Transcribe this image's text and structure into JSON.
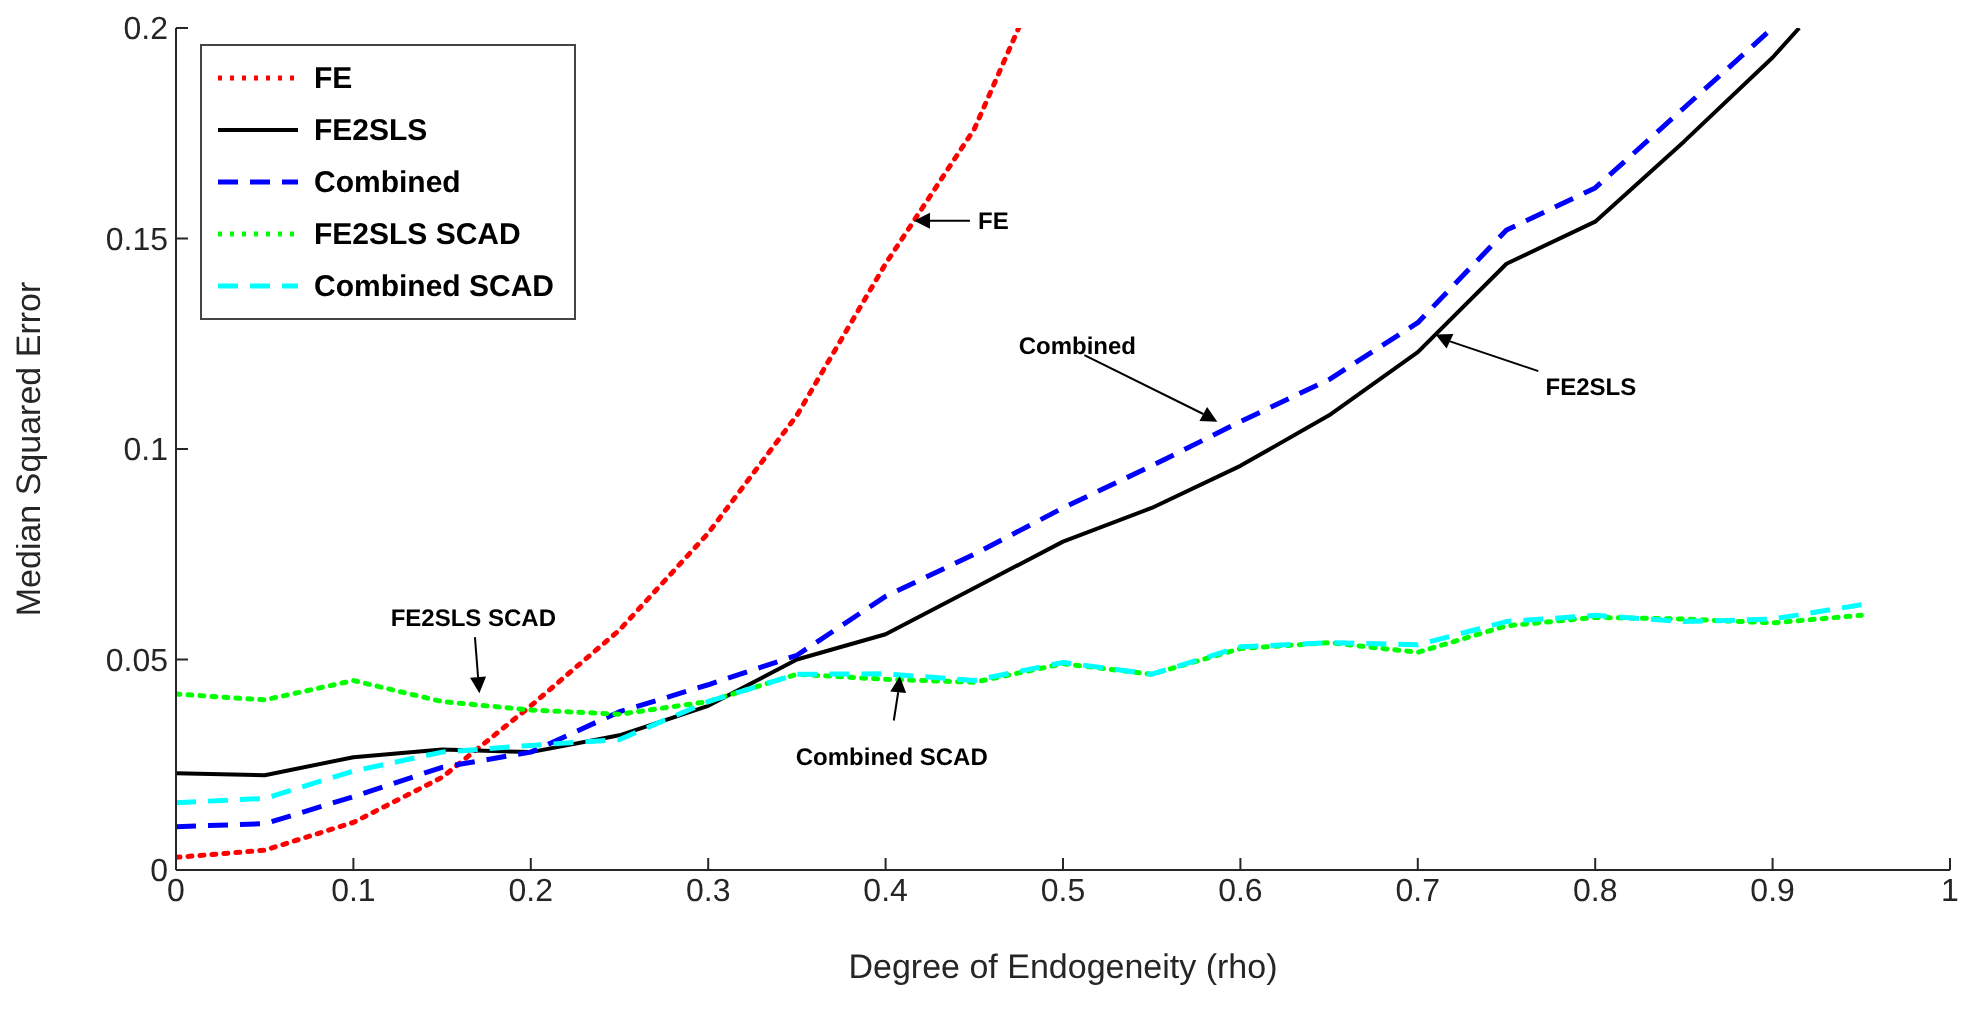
{
  "chart_data": {
    "type": "line",
    "xlabel": "Degree of Endogeneity (rho)",
    "ylabel": "Median Squared Error",
    "xlim": [
      0,
      1
    ],
    "xticks": [
      0,
      0.1,
      0.2,
      0.3,
      0.4,
      0.5,
      0.6,
      0.7,
      0.8,
      0.9,
      1
    ],
    "ylim": [
      0,
      0.2
    ],
    "yticks": [
      0,
      0.05,
      0.1,
      0.15,
      0.2
    ],
    "grid": false,
    "legend": "top left",
    "marker": "none",
    "series": [
      {
        "name": "FE",
        "color": "#ff0000",
        "line_style": "dotted",
        "x": [
          0,
          0.05,
          0.1,
          0.15,
          0.2,
          0.25,
          0.3,
          0.35,
          0.4,
          0.45,
          0.475
        ],
        "values": [
          0.003,
          0.0047,
          0.0113,
          0.022,
          0.039,
          0.057,
          0.08,
          0.108,
          0.144,
          0.176,
          0.2
        ]
      },
      {
        "name": "FE2SLS",
        "color": "#000000",
        "line_style": "solid",
        "x": [
          0,
          0.05,
          0.1,
          0.15,
          0.2,
          0.25,
          0.3,
          0.35,
          0.4,
          0.45,
          0.5,
          0.55,
          0.6,
          0.65,
          0.7,
          0.75,
          0.8,
          0.85,
          0.9,
          0.915
        ],
        "values": [
          0.023,
          0.0225,
          0.0268,
          0.0286,
          0.028,
          0.032,
          0.039,
          0.05,
          0.056,
          0.067,
          0.078,
          0.086,
          0.096,
          0.108,
          0.123,
          0.144,
          0.154,
          0.173,
          0.193,
          0.2
        ]
      },
      {
        "name": "Combined",
        "color": "#0000ff",
        "line_style": "dashed",
        "x": [
          0,
          0.05,
          0.1,
          0.15,
          0.2,
          0.25,
          0.3,
          0.35,
          0.4,
          0.45,
          0.5,
          0.55,
          0.6,
          0.65,
          0.7,
          0.75,
          0.8,
          0.85,
          0.9
        ],
        "values": [
          0.0103,
          0.011,
          0.0174,
          0.0244,
          0.028,
          0.0376,
          0.044,
          0.051,
          0.065,
          0.075,
          0.086,
          0.096,
          0.1065,
          0.1165,
          0.13,
          0.152,
          0.162,
          0.181,
          0.2
        ]
      },
      {
        "name": "FE2SLS SCAD",
        "color": "#00ff00",
        "line_style": "dotted",
        "x": [
          0,
          0.05,
          0.1,
          0.15,
          0.2,
          0.25,
          0.3,
          0.35,
          0.4,
          0.45,
          0.5,
          0.55,
          0.6,
          0.65,
          0.7,
          0.75,
          0.8,
          0.85,
          0.9,
          0.95
        ],
        "values": [
          0.0418,
          0.0404,
          0.045,
          0.04,
          0.038,
          0.037,
          0.04,
          0.0465,
          0.0453,
          0.0446,
          0.049,
          0.0465,
          0.0526,
          0.054,
          0.0517,
          0.058,
          0.06,
          0.0596,
          0.0587,
          0.0605
        ]
      },
      {
        "name": "Combined SCAD",
        "color": "#00ffff",
        "line_style": "dashed",
        "x": [
          0,
          0.05,
          0.1,
          0.15,
          0.2,
          0.25,
          0.3,
          0.35,
          0.4,
          0.45,
          0.5,
          0.55,
          0.6,
          0.65,
          0.7,
          0.75,
          0.8,
          0.85,
          0.9,
          0.95
        ],
        "values": [
          0.016,
          0.017,
          0.0235,
          0.028,
          0.0296,
          0.031,
          0.04,
          0.0465,
          0.0466,
          0.045,
          0.0493,
          0.0465,
          0.053,
          0.054,
          0.0535,
          0.059,
          0.0605,
          0.059,
          0.0596,
          0.063
        ]
      }
    ],
    "annotations": [
      {
        "text": "FE",
        "x": 0.416,
        "y": 0.1542
      },
      {
        "text": "Combined",
        "x": 0.587,
        "y": 0.1065
      },
      {
        "text": "FE2SLS",
        "x": 0.71,
        "y": 0.1272
      },
      {
        "text": "FE2SLS SCAD",
        "x": 0.171,
        "y": 0.042
      },
      {
        "text": "Combined SCAD",
        "x": 0.408,
        "y": 0.046
      }
    ]
  }
}
